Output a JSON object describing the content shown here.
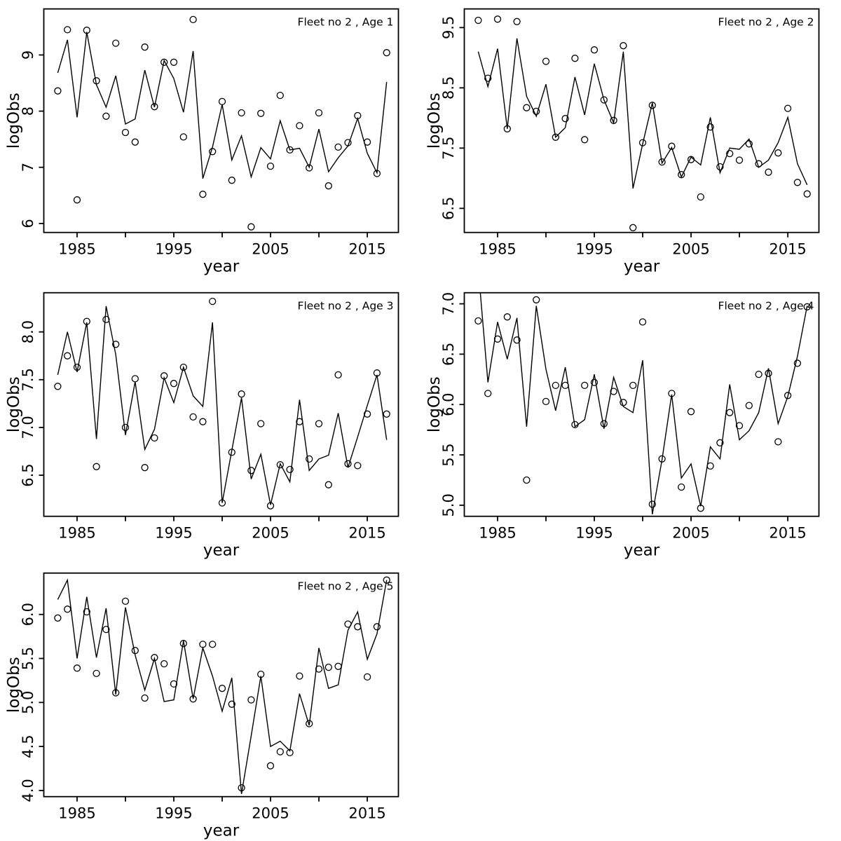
{
  "page": {
    "background": "#ffffff",
    "foreground": "#000000"
  },
  "chart_data": [
    {
      "type": "line",
      "title": "Fleet no 2 , Age 1",
      "xlabel": "year",
      "ylabel": "logObs",
      "x": [
        1983,
        1984,
        1985,
        1986,
        1987,
        1988,
        1989,
        1990,
        1991,
        1992,
        1993,
        1994,
        1995,
        1996,
        1997,
        1998,
        1999,
        2000,
        2001,
        2002,
        2003,
        2004,
        2005,
        2006,
        2007,
        2008,
        2009,
        2010,
        2011,
        2012,
        2013,
        2014,
        2015,
        2016,
        2017
      ],
      "series": [
        {
          "name": "observations",
          "style": "points",
          "values": [
            8.36,
            9.45,
            6.42,
            9.44,
            8.54,
            7.91,
            9.21,
            7.62,
            7.45,
            9.14,
            8.08,
            8.87,
            8.87,
            7.54,
            9.63,
            6.52,
            7.28,
            8.17,
            6.77,
            7.97,
            5.94,
            7.96,
            7.02,
            8.28,
            7.31,
            7.74,
            6.99,
            7.97,
            6.67,
            7.36,
            7.44,
            7.92,
            7.45,
            6.89,
            9.04
          ]
        },
        {
          "name": "fitted",
          "style": "line",
          "values": [
            8.68,
            9.27,
            7.89,
            9.41,
            8.47,
            8.07,
            8.63,
            7.77,
            7.86,
            8.73,
            8.07,
            8.9,
            8.58,
            7.98,
            9.07,
            6.8,
            7.36,
            8.12,
            7.13,
            7.56,
            6.83,
            7.35,
            7.15,
            7.83,
            7.31,
            7.34,
            7.0,
            7.68,
            6.92,
            7.17,
            7.38,
            7.87,
            7.25,
            6.9,
            8.52
          ]
        }
      ],
      "xlim": [
        1981.56,
        2018.22
      ],
      "ylim": [
        5.84,
        9.82
      ],
      "xticks": [
        1985,
        1990,
        1995,
        2000,
        2005,
        2010,
        2015
      ],
      "xtick_labels": [
        "1985",
        "",
        "1995",
        "",
        "2005",
        "",
        "2015"
      ],
      "yticks": [
        6,
        7,
        8,
        9
      ],
      "ytick_labels": [
        "6",
        "7",
        "8",
        "9"
      ],
      "grid": false,
      "legend": null
    },
    {
      "type": "line",
      "title": "Fleet no 2 , Age 2",
      "xlabel": "year",
      "ylabel": "logObs",
      "x": [
        1983,
        1984,
        1985,
        1986,
        1987,
        1988,
        1989,
        1990,
        1991,
        1992,
        1993,
        1994,
        1995,
        1996,
        1997,
        1998,
        1999,
        2000,
        2001,
        2002,
        2003,
        2004,
        2005,
        2006,
        2007,
        2008,
        2009,
        2010,
        2011,
        2012,
        2013,
        2014,
        2015,
        2016,
        2017
      ],
      "series": [
        {
          "name": "observations",
          "style": "points",
          "values": [
            9.62,
            8.66,
            9.64,
            7.82,
            9.6,
            8.17,
            8.11,
            8.94,
            7.68,
            7.99,
            8.99,
            7.64,
            9.13,
            8.3,
            7.96,
            9.2,
            6.18,
            7.59,
            8.21,
            7.27,
            7.53,
            7.06,
            7.31,
            6.69,
            7.85,
            7.19,
            7.41,
            7.3,
            7.57,
            7.24,
            7.1,
            7.42,
            8.16,
            6.93,
            6.74
          ]
        },
        {
          "name": "fitted",
          "style": "line",
          "values": [
            9.1,
            8.52,
            9.15,
            7.82,
            9.32,
            8.36,
            8.03,
            8.56,
            7.68,
            7.84,
            8.68,
            8.05,
            8.9,
            8.3,
            7.92,
            9.1,
            6.83,
            7.57,
            8.25,
            7.25,
            7.51,
            7.02,
            7.35,
            7.22,
            8.01,
            7.09,
            7.5,
            7.48,
            7.65,
            7.18,
            7.3,
            7.59,
            8.01,
            7.24,
            6.89
          ]
        }
      ],
      "xlim": [
        1981.56,
        2018.22
      ],
      "ylim": [
        6.1,
        9.81
      ],
      "xticks": [
        1985,
        1990,
        1995,
        2000,
        2005,
        2010,
        2015
      ],
      "xtick_labels": [
        "1985",
        "",
        "1995",
        "",
        "2005",
        "",
        "2015"
      ],
      "yticks": [
        6.5,
        7.5,
        8.5,
        9.5
      ],
      "ytick_labels": [
        "6.5",
        "7.5",
        "8.5",
        "9.5"
      ],
      "grid": false,
      "legend": null
    },
    {
      "type": "line",
      "title": "Fleet no 2 , Age 3",
      "xlabel": "year",
      "ylabel": "logObs",
      "x": [
        1983,
        1984,
        1985,
        1986,
        1987,
        1988,
        1989,
        1990,
        1991,
        1992,
        1993,
        1994,
        1995,
        1996,
        1997,
        1998,
        1999,
        2000,
        2001,
        2002,
        2003,
        2004,
        2005,
        2006,
        2007,
        2008,
        2009,
        2010,
        2011,
        2012,
        2013,
        2014,
        2015,
        2016,
        2017
      ],
      "series": [
        {
          "name": "observations",
          "style": "points",
          "values": [
            7.43,
            7.75,
            7.63,
            8.11,
            6.59,
            8.13,
            7.87,
            7.0,
            7.51,
            6.58,
            6.89,
            7.54,
            7.46,
            7.63,
            7.11,
            7.06,
            8.32,
            6.21,
            6.74,
            7.35,
            6.55,
            7.04,
            6.18,
            6.61,
            6.56,
            7.06,
            6.67,
            7.04,
            6.4,
            7.55,
            6.62,
            6.6,
            7.14,
            7.57,
            7.14
          ]
        },
        {
          "name": "fitted",
          "style": "line",
          "values": [
            7.55,
            8.0,
            7.58,
            8.1,
            6.88,
            8.27,
            7.76,
            6.92,
            7.48,
            6.77,
            6.98,
            7.52,
            7.26,
            7.63,
            7.33,
            7.22,
            8.1,
            6.21,
            6.76,
            7.31,
            6.46,
            6.72,
            6.19,
            6.62,
            6.43,
            7.29,
            6.55,
            6.67,
            6.71,
            7.15,
            6.58,
            6.9,
            7.23,
            7.55,
            6.87
          ]
        }
      ],
      "xlim": [
        1981.56,
        2018.22
      ],
      "ylim": [
        6.07,
        8.41
      ],
      "xticks": [
        1985,
        1990,
        1995,
        2000,
        2005,
        2010,
        2015
      ],
      "xtick_labels": [
        "1985",
        "",
        "1995",
        "",
        "2005",
        "",
        "2015"
      ],
      "yticks": [
        6.5,
        7.0,
        7.5,
        8.0
      ],
      "ytick_labels": [
        "6.5",
        "7.0",
        "7.5",
        "8.0"
      ],
      "grid": false,
      "legend": null
    },
    {
      "type": "line",
      "title": "Fleet no 2 , Age 4",
      "xlabel": "year",
      "ylabel": "logObs",
      "x": [
        1983,
        1984,
        1985,
        1986,
        1987,
        1988,
        1989,
        1990,
        1991,
        1992,
        1993,
        1994,
        1995,
        1996,
        1997,
        1998,
        1999,
        2000,
        2001,
        2002,
        2003,
        2004,
        2005,
        2006,
        2007,
        2008,
        2009,
        2010,
        2011,
        2012,
        2013,
        2014,
        2015,
        2016,
        2017
      ],
      "series": [
        {
          "name": "observations",
          "style": "points",
          "values": [
            6.83,
            6.11,
            6.65,
            6.87,
            6.64,
            5.25,
            7.04,
            6.03,
            6.19,
            6.19,
            5.8,
            6.19,
            6.22,
            5.81,
            6.13,
            6.02,
            6.19,
            6.82,
            5.01,
            5.46,
            6.11,
            5.18,
            5.93,
            4.97,
            5.39,
            5.62,
            5.92,
            5.79,
            5.99,
            6.3,
            6.31,
            5.63,
            6.09,
            6.41,
            6.97
          ]
        },
        {
          "name": "fitted",
          "style": "line",
          "values": [
            7.35,
            6.22,
            6.82,
            6.45,
            6.86,
            5.78,
            6.98,
            6.35,
            5.94,
            6.37,
            5.78,
            5.85,
            6.3,
            5.76,
            6.27,
            5.98,
            5.92,
            6.44,
            4.91,
            5.45,
            6.1,
            5.27,
            5.41,
            4.99,
            5.58,
            5.46,
            6.2,
            5.65,
            5.74,
            5.92,
            6.36,
            5.81,
            6.08,
            6.48,
            6.98
          ]
        }
      ],
      "xlim": [
        1981.56,
        2018.22
      ],
      "ylim": [
        4.89,
        7.11
      ],
      "xticks": [
        1985,
        1990,
        1995,
        2000,
        2005,
        2010,
        2015
      ],
      "xtick_labels": [
        "1985",
        "",
        "1995",
        "",
        "2005",
        "",
        "2015"
      ],
      "yticks": [
        5.0,
        5.5,
        6.0,
        6.5,
        7.0
      ],
      "ytick_labels": [
        "5.0",
        "5.5",
        "6.0",
        "6.5",
        "7.0"
      ],
      "grid": false,
      "legend": null
    },
    {
      "type": "line",
      "title": "Fleet no 2 , Age 5",
      "xlabel": "year",
      "ylabel": "logObs",
      "x": [
        1983,
        1984,
        1985,
        1986,
        1987,
        1988,
        1989,
        1990,
        1991,
        1992,
        1993,
        1994,
        1995,
        1996,
        1997,
        1998,
        1999,
        2000,
        2001,
        2002,
        2003,
        2004,
        2005,
        2006,
        2007,
        2008,
        2009,
        2010,
        2011,
        2012,
        2013,
        2014,
        2015,
        2016,
        2017
      ],
      "series": [
        {
          "name": "observations",
          "style": "points",
          "values": [
            5.96,
            6.06,
            5.39,
            6.03,
            5.33,
            5.83,
            5.11,
            6.15,
            5.59,
            5.05,
            5.51,
            5.44,
            5.21,
            5.67,
            5.04,
            5.66,
            5.66,
            5.16,
            4.98,
            4.03,
            5.03,
            5.32,
            4.28,
            4.44,
            4.43,
            5.3,
            4.76,
            5.38,
            5.4,
            5.41,
            5.89,
            5.86,
            5.29,
            5.86,
            6.39
          ]
        },
        {
          "name": "fitted",
          "style": "line",
          "values": [
            6.17,
            6.39,
            5.5,
            6.2,
            5.51,
            6.07,
            5.09,
            6.08,
            5.54,
            5.14,
            5.5,
            5.01,
            5.03,
            5.7,
            5.04,
            5.62,
            5.3,
            4.9,
            5.28,
            3.96,
            4.62,
            5.3,
            4.5,
            4.56,
            4.45,
            5.1,
            4.74,
            5.62,
            5.16,
            5.2,
            5.82,
            6.03,
            5.49,
            5.78,
            6.39
          ]
        }
      ],
      "xlim": [
        1981.56,
        2018.22
      ],
      "ylim": [
        3.93,
        6.47
      ],
      "xticks": [
        1985,
        1990,
        1995,
        2000,
        2005,
        2010,
        2015
      ],
      "xtick_labels": [
        "1985",
        "",
        "1995",
        "",
        "2005",
        "",
        "2015"
      ],
      "yticks": [
        4.0,
        4.5,
        5.0,
        5.5,
        6.0
      ],
      "ytick_labels": [
        "4.0",
        "4.5",
        "5.0",
        "5.5",
        "6.0"
      ],
      "grid": false,
      "legend": null
    }
  ]
}
